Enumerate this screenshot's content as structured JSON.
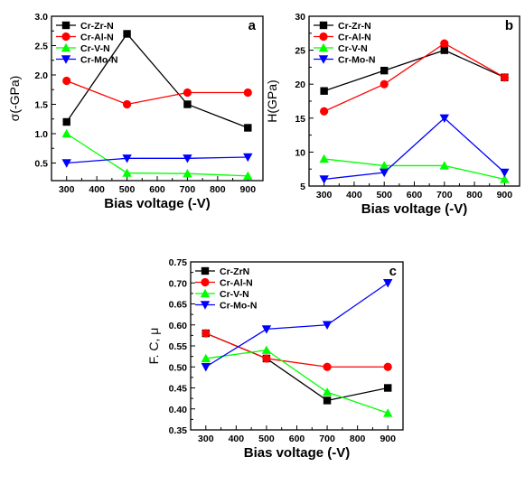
{
  "chart_data": [
    {
      "panel": "a",
      "type": "line",
      "xlabel": "Bias voltage (-V)",
      "ylabel": "σ(-GPa)",
      "xlim": [
        250,
        950
      ],
      "ylim": [
        0.2,
        3.0
      ],
      "xticks": [
        300,
        400,
        500,
        600,
        700,
        800,
        900
      ],
      "yticks": [
        0.5,
        1.0,
        1.5,
        2.0,
        2.5,
        3.0
      ],
      "ytick_labels": [
        "0.5",
        "1.0",
        "1.5",
        "2.0",
        "2.5",
        "3.0"
      ],
      "legend_position": "top-left",
      "series": [
        {
          "name": "Cr-Zr-N",
          "marker": "square",
          "color": "#000000",
          "x": [
            300,
            500,
            700,
            900
          ],
          "y": [
            1.2,
            2.7,
            1.5,
            1.1
          ]
        },
        {
          "name": "Cr-Al-N",
          "marker": "circle",
          "color": "#ff0000",
          "x": [
            300,
            500,
            700,
            900
          ],
          "y": [
            1.9,
            1.5,
            1.7,
            1.7
          ]
        },
        {
          "name": "Cr-V-N",
          "marker": "triangle-up",
          "color": "#00ff00",
          "x": [
            300,
            500,
            700,
            900
          ],
          "y": [
            1.0,
            0.33,
            0.32,
            0.28
          ]
        },
        {
          "name": "Cr-Mo-N",
          "marker": "triangle-down",
          "color": "#0000ff",
          "x": [
            300,
            500,
            700,
            900
          ],
          "y": [
            0.5,
            0.58,
            0.58,
            0.6
          ]
        }
      ]
    },
    {
      "panel": "b",
      "type": "line",
      "xlabel": "Bias voltage (-V)",
      "ylabel": "H(GPa)",
      "xlim": [
        250,
        950
      ],
      "ylim": [
        5,
        30
      ],
      "xticks": [
        300,
        400,
        500,
        600,
        700,
        800,
        900
      ],
      "yticks": [
        5,
        10,
        15,
        20,
        25,
        30
      ],
      "ytick_labels": [
        "5",
        "10",
        "15",
        "20",
        "25",
        "30"
      ],
      "legend_position": "top-left",
      "series": [
        {
          "name": "Cr-Zr-N",
          "marker": "square",
          "color": "#000000",
          "x": [
            300,
            500,
            700,
            900
          ],
          "y": [
            19,
            22,
            25,
            21
          ]
        },
        {
          "name": "Cr-Al-N",
          "marker": "circle",
          "color": "#ff0000",
          "x": [
            300,
            500,
            700,
            900
          ],
          "y": [
            16,
            20,
            26,
            21
          ]
        },
        {
          "name": "Cr-V-N",
          "marker": "triangle-up",
          "color": "#00ff00",
          "x": [
            300,
            500,
            700,
            900
          ],
          "y": [
            9,
            8,
            8,
            6
          ]
        },
        {
          "name": "Cr-Mo-N",
          "marker": "triangle-down",
          "color": "#0000ff",
          "x": [
            300,
            500,
            700,
            900
          ],
          "y": [
            6,
            7,
            15,
            7
          ]
        }
      ]
    },
    {
      "panel": "c",
      "type": "line",
      "xlabel": "Bias voltage (-V)",
      "ylabel": "F. C, μ",
      "xlim": [
        250,
        950
      ],
      "ylim": [
        0.35,
        0.75
      ],
      "xticks": [
        300,
        400,
        500,
        600,
        700,
        800,
        900
      ],
      "yticks": [
        0.35,
        0.4,
        0.45,
        0.5,
        0.55,
        0.6,
        0.65,
        0.7,
        0.75
      ],
      "ytick_labels": [
        "0.35",
        "0.40",
        "0.45",
        "0.50",
        "0.55",
        "0.60",
        "0.65",
        "0.70",
        "0.75"
      ],
      "legend_position": "top-left",
      "series": [
        {
          "name": "Cr-ZrN",
          "marker": "square",
          "color": "#000000",
          "x": [
            300,
            500,
            700,
            900
          ],
          "y": [
            0.58,
            0.52,
            0.42,
            0.45
          ]
        },
        {
          "name": "Cr-Al-N",
          "marker": "circle",
          "color": "#ff0000",
          "x": [
            300,
            500,
            700,
            900
          ],
          "y": [
            0.58,
            0.52,
            0.5,
            0.5
          ]
        },
        {
          "name": "Cr-V-N",
          "marker": "triangle-up",
          "color": "#00ff00",
          "x": [
            300,
            500,
            700,
            900
          ],
          "y": [
            0.52,
            0.54,
            0.44,
            0.39
          ]
        },
        {
          "name": "Cr-Mo-N",
          "marker": "triangle-down",
          "color": "#0000ff",
          "x": [
            300,
            500,
            700,
            900
          ],
          "y": [
            0.5,
            0.59,
            0.6,
            0.7
          ]
        }
      ]
    }
  ]
}
